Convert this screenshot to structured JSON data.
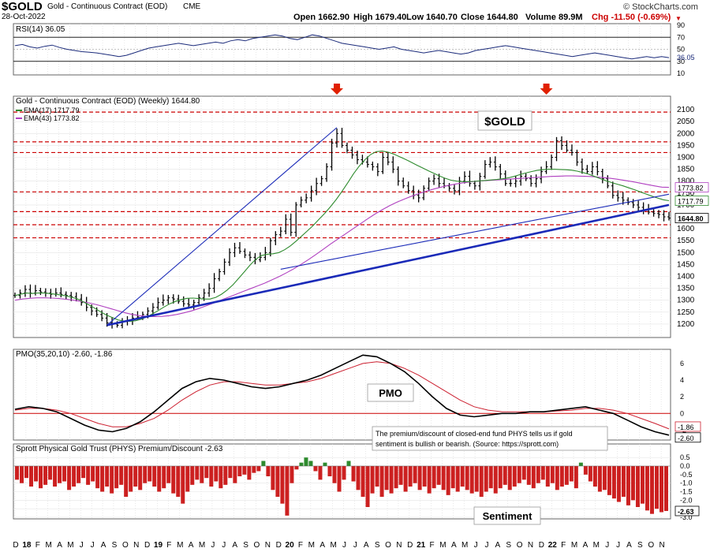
{
  "header": {
    "symbol": "$GOLD",
    "name": "Gold - Continuous Contract (EOD)",
    "exchange": "CME",
    "date": "28-Oct-2022",
    "open": "Open 1662.90",
    "high": "High 1679.40",
    "low": "Low 1640.70",
    "close": "Close 1644.80",
    "volume": "Volume 89.9M",
    "change": "Chg -11.50 (-0.69%)",
    "copyright": "© StockCharts.com",
    "change_color": "#cc0000"
  },
  "chart_data": [
    {
      "panel": "rsi",
      "type": "line",
      "legend": "RSI(14) 36.05",
      "last_value_label": "36.05",
      "ylim": [
        10,
        90
      ],
      "ticks": [
        "90",
        "70",
        "50",
        "30",
        "10"
      ],
      "bands": [
        70,
        30
      ],
      "color": "#1a2a7a",
      "y": [
        56,
        58,
        54,
        52,
        55,
        57,
        53,
        50,
        48,
        46,
        45,
        44,
        42,
        40,
        38,
        40,
        44,
        48,
        52,
        54,
        56,
        58,
        60,
        58,
        56,
        58,
        60,
        62,
        60,
        64,
        66,
        64,
        68,
        70,
        72,
        74,
        72,
        68,
        66,
        70,
        74,
        72,
        68,
        64,
        60,
        58,
        56,
        54,
        52,
        50,
        52,
        54,
        50,
        48,
        46,
        44,
        46,
        48,
        46,
        44,
        42,
        44,
        48,
        50,
        52,
        54,
        56,
        54,
        52,
        50,
        48,
        46,
        44,
        42,
        40,
        38,
        40,
        42,
        44,
        42,
        40,
        38,
        36,
        34,
        36,
        38,
        36,
        38,
        36.05
      ]
    },
    {
      "panel": "price",
      "type": "line",
      "legend_main": "Gold - Continuous Contract (EOD) (Weekly) 1644.80",
      "ema_fast_label": "EMA(17) 1717.79",
      "ema_slow_label": "EMA(43) 1773.82",
      "last_labels": [
        "1773.82",
        "1717.79",
        "1644.80"
      ],
      "title": "$GOLD",
      "ylim": [
        1150,
        2150
      ],
      "ticks": [
        1200,
        1250,
        1300,
        1350,
        1400,
        1450,
        1500,
        1550,
        1600,
        1650,
        1700,
        1750,
        1800,
        1850,
        1900,
        1950,
        2000,
        2050,
        2100
      ],
      "dashed_levels": [
        2090,
        1965,
        1920,
        1755,
        1672,
        1617,
        1562
      ],
      "x_start": 2018.0,
      "x_end": 2022.9,
      "close": [
        1320,
        1330,
        1345,
        1330,
        1340,
        1335,
        1330,
        1325,
        1330,
        1325,
        1320,
        1315,
        1305,
        1290,
        1270,
        1255,
        1240,
        1225,
        1205,
        1200,
        1195,
        1210,
        1215,
        1225,
        1230,
        1240,
        1255,
        1270,
        1290,
        1300,
        1310,
        1305,
        1295,
        1285,
        1280,
        1290,
        1310,
        1330,
        1350,
        1390,
        1420,
        1460,
        1500,
        1520,
        1505,
        1490,
        1480,
        1470,
        1480,
        1500,
        1550,
        1575,
        1590,
        1640,
        1585,
        1700,
        1720,
        1730,
        1760,
        1790,
        1810,
        1860,
        1960,
        2000,
        1950,
        1930,
        1910,
        1890,
        1880,
        1870,
        1860,
        1840,
        1900,
        1880,
        1850,
        1800,
        1780,
        1760,
        1740,
        1730,
        1770,
        1800,
        1810,
        1790,
        1780,
        1770,
        1760,
        1800,
        1820,
        1790,
        1780,
        1820,
        1870,
        1880,
        1860,
        1830,
        1790,
        1790,
        1800,
        1820,
        1810,
        1790,
        1810,
        1840,
        1860,
        1900,
        1970,
        1950,
        1930,
        1920,
        1880,
        1850,
        1840,
        1860,
        1840,
        1810,
        1780,
        1740,
        1730,
        1720,
        1710,
        1700,
        1690,
        1680,
        1670,
        1664,
        1660,
        1650,
        1645
      ],
      "ema_fast": [
        1320,
        1325,
        1330,
        1328,
        1330,
        1330,
        1328,
        1325,
        1322,
        1318,
        1312,
        1304,
        1292,
        1279,
        1265,
        1250,
        1237,
        1227,
        1217,
        1213,
        1211,
        1214,
        1220,
        1230,
        1243,
        1257,
        1272,
        1285,
        1295,
        1303,
        1308,
        1309,
        1307,
        1305,
        1305,
        1312,
        1325,
        1343,
        1365,
        1392,
        1420,
        1448,
        1473,
        1488,
        1493,
        1495,
        1500,
        1512,
        1528,
        1548,
        1570,
        1592,
        1614,
        1640,
        1665,
        1693,
        1723,
        1757,
        1793,
        1830,
        1863,
        1890,
        1912,
        1924,
        1926,
        1922,
        1914,
        1903,
        1892,
        1880,
        1868,
        1856,
        1844,
        1833,
        1822,
        1812,
        1804,
        1800,
        1798,
        1798,
        1799,
        1801,
        1803,
        1805,
        1807,
        1810,
        1814,
        1820,
        1827,
        1834,
        1840,
        1845,
        1848,
        1850,
        1850,
        1849,
        1848,
        1846,
        1842,
        1836,
        1829,
        1820,
        1811,
        1802,
        1794,
        1787,
        1780,
        1772,
        1764,
        1755,
        1746,
        1737,
        1729,
        1722,
        1717.79
      ],
      "ema_slow": [
        1300,
        1305,
        1308,
        1310,
        1310,
        1309,
        1307,
        1304,
        1300,
        1295,
        1289,
        1282,
        1274,
        1265,
        1256,
        1247,
        1240,
        1235,
        1232,
        1231,
        1232,
        1235,
        1240,
        1247,
        1255,
        1265,
        1276,
        1288,
        1300,
        1312,
        1324,
        1336,
        1348,
        1360,
        1372,
        1386,
        1400,
        1416,
        1433,
        1452,
        1472,
        1493,
        1515,
        1537,
        1558,
        1579,
        1600,
        1621,
        1642,
        1662,
        1680,
        1697,
        1712,
        1725,
        1737,
        1748,
        1758,
        1767,
        1775,
        1782,
        1788,
        1793,
        1797,
        1800,
        1802,
        1804,
        1806,
        1808,
        1810,
        1812,
        1814,
        1816,
        1818,
        1820,
        1821,
        1822,
        1822,
        1821,
        1820,
        1818,
        1815,
        1812,
        1808,
        1803,
        1798,
        1792,
        1786,
        1780,
        1775,
        1773.82
      ]
    },
    {
      "panel": "pmo",
      "type": "line",
      "legend": "PMO(35,20,10) -2.60, -1.86",
      "title": "PMO",
      "ylim": [
        -3,
        7.5
      ],
      "ticks": [
        "6",
        "4",
        "2",
        "0",
        "-2"
      ],
      "last_labels": [
        "-1.86",
        "-2.60"
      ],
      "pmo": [
        0.5,
        0.8,
        0.6,
        0.2,
        -0.6,
        -1.4,
        -2.0,
        -2.2,
        -1.8,
        -1.0,
        0.2,
        1.6,
        3.0,
        3.8,
        4.2,
        4.0,
        3.6,
        3.2,
        3.0,
        3.2,
        3.6,
        4.0,
        4.6,
        5.4,
        6.2,
        7.0,
        6.8,
        6.0,
        5.0,
        3.6,
        2.0,
        0.6,
        -0.2,
        -0.4,
        -0.2,
        0.0,
        0.0,
        0.2,
        0.2,
        0.4,
        0.6,
        0.8,
        0.4,
        0.0,
        -0.8,
        -1.6,
        -2.2,
        -2.6
      ],
      "signal": [
        0.4,
        0.6,
        0.6,
        0.4,
        0.0,
        -0.6,
        -1.2,
        -1.6,
        -1.6,
        -1.2,
        -0.6,
        0.4,
        1.6,
        2.6,
        3.4,
        3.8,
        3.8,
        3.6,
        3.4,
        3.4,
        3.6,
        3.8,
        4.2,
        4.8,
        5.4,
        6.0,
        6.2,
        6.0,
        5.4,
        4.6,
        3.6,
        2.6,
        1.6,
        0.8,
        0.4,
        0.2,
        0.2,
        0.2,
        0.2,
        0.3,
        0.4,
        0.6,
        0.6,
        0.4,
        0.0,
        -0.6,
        -1.2,
        -1.86
      ]
    },
    {
      "panel": "sentiment",
      "type": "bar",
      "legend": "Sprott Physical Gold Trust (PHYS) Premium/Discount -2.63",
      "title": "Sentiment",
      "ylim": [
        -3.0,
        0.6
      ],
      "ticks": [
        "0.5",
        "0.0",
        "-0.5",
        "-1.0",
        "-1.5",
        "-2.0",
        "-2.5",
        "-3.0"
      ],
      "last_value_label": "-2.63",
      "values": [
        -0.8,
        -1.0,
        -0.7,
        -1.2,
        -0.9,
        -1.3,
        -1.1,
        -0.8,
        -1.2,
        -1.0,
        -0.9,
        -1.4,
        -1.2,
        -1.0,
        -0.7,
        -1.1,
        -0.9,
        -1.3,
        -1.5,
        -1.2,
        -1.6,
        -1.3,
        -1.1,
        -1.8,
        -1.5,
        -1.2,
        -1.4,
        -1.0,
        -0.9,
        -1.2,
        -1.5,
        -1.3,
        -1.0,
        -1.6,
        -1.8,
        -2.2,
        -1.5,
        -1.1,
        -0.8,
        -1.0,
        -0.7,
        -1.2,
        -0.9,
        -1.3,
        -1.1,
        -0.7,
        -1.0,
        -0.6,
        -0.5,
        -0.8,
        -0.4,
        -0.3,
        0.3,
        -0.6,
        -1.4,
        -1.8,
        -2.2,
        -2.9,
        -1.0,
        -0.2,
        0.2,
        0.5,
        0.3,
        -0.3,
        -0.8,
        0.2,
        -0.6,
        -1.0,
        -1.5,
        -0.8,
        0.3,
        -0.9,
        -1.4,
        -1.8,
        -2.4,
        -1.6,
        -1.2,
        -1.8,
        -1.4,
        -1.6,
        -1.3,
        -1.1,
        -1.5,
        -1.2,
        -1.0,
        -1.4,
        -1.2,
        -1.6,
        -1.3,
        -1.1,
        -1.4,
        -1.7,
        -1.3,
        -1.5,
        -1.2,
        -1.4,
        -1.6,
        -1.5,
        -1.8,
        -1.5,
        -1.3,
        -1.6,
        -1.3,
        -1.1,
        -1.4,
        -1.2,
        -1.0,
        -0.8,
        -1.1,
        -1.3,
        -1.0,
        -0.8,
        -1.2,
        -1.0,
        -1.4,
        -1.2,
        -1.1,
        -0.9,
        -1.3,
        0.2,
        -0.5,
        -0.9,
        -1.2,
        -1.5,
        -1.4,
        -1.7,
        -1.9,
        -2.1,
        -1.8,
        -2.3,
        -2.0,
        -2.4,
        -2.2,
        -2.6,
        -2.8,
        -2.5,
        -2.7,
        -2.63
      ]
    }
  ],
  "x_axis": {
    "months": [
      "D",
      "18",
      "F",
      "M",
      "A",
      "M",
      "J",
      "J",
      "A",
      "S",
      "O",
      "N",
      "D",
      "19",
      "F",
      "M",
      "A",
      "M",
      "J",
      "J",
      "A",
      "S",
      "O",
      "N",
      "D",
      "20",
      "F",
      "M",
      "A",
      "M",
      "J",
      "J",
      "A",
      "S",
      "O",
      "N",
      "D",
      "21",
      "F",
      "M",
      "A",
      "M",
      "J",
      "J",
      "A",
      "S",
      "O",
      "N",
      "D",
      "22",
      "F",
      "M",
      "A",
      "M",
      "J",
      "J",
      "A",
      "S",
      "O",
      "N"
    ]
  },
  "annotation": {
    "text": "The premium/discount of closed-end fund PHYS tells us if gold sentiment is bullish or bearish. (Source: https://sprott.com)"
  },
  "colors": {
    "price": "#000000",
    "ema_fast": "#2e8b2e",
    "ema_slow": "#b040c0",
    "trend": "#1a2ab8",
    "dashed": "#cc0000",
    "arrow": "#e02000",
    "rsi_fill": "#2a3a8a",
    "sentiment_neg": "#cc2020",
    "sentiment_pos": "#2e8b2e",
    "pmo_signal": "#cc2030"
  }
}
